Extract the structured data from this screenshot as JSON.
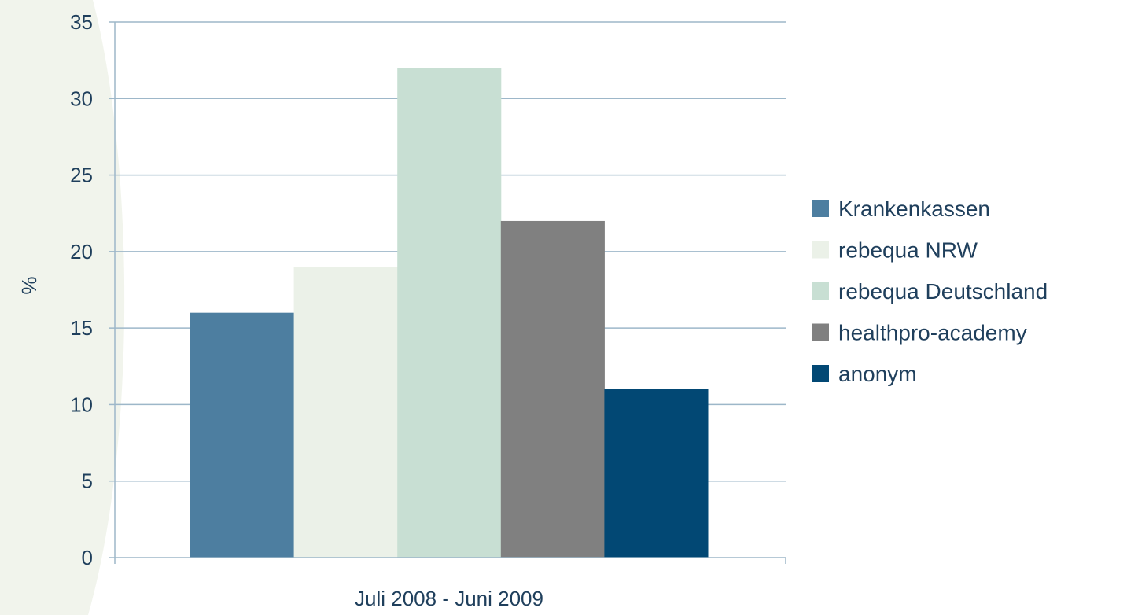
{
  "chart_data": {
    "type": "bar",
    "categories": [
      "Juli 2008 - Juni 2009"
    ],
    "series": [
      {
        "name": "Krankenkassen",
        "values": [
          16
        ],
        "color": "#4d7ea0"
      },
      {
        "name": "rebequa NRW",
        "values": [
          19
        ],
        "color": "#ebf1e8"
      },
      {
        "name": "rebequa Deutschland",
        "values": [
          32
        ],
        "color": "#c8dfd3"
      },
      {
        "name": "healthpro-academy",
        "values": [
          22
        ],
        "color": "#808080"
      },
      {
        "name": "anonym",
        "values": [
          11
        ],
        "color": "#024874"
      }
    ],
    "title": "",
    "xlabel": "",
    "ylabel": "%",
    "ylim": [
      0,
      35
    ],
    "yticks": [
      "0",
      "5",
      "10",
      "15",
      "20",
      "25",
      "30",
      "35"
    ],
    "grid": true,
    "legend_position": "right"
  },
  "colors": {
    "gridline": "#9db7c9",
    "text": "#1f3f5c",
    "background_shape": "#f1f4ec"
  }
}
